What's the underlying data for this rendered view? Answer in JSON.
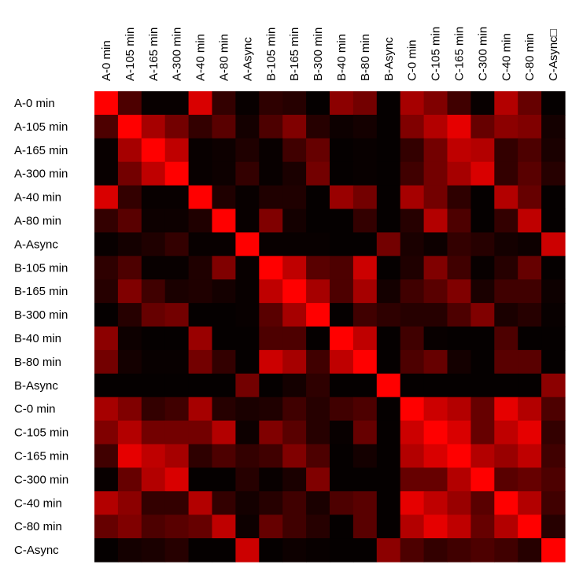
{
  "chart_data": {
    "type": "heatmap",
    "title": "",
    "xlabel": "",
    "ylabel": "",
    "legend": "none",
    "grid": false,
    "color_low": "#000000",
    "color_high": "#ff0000",
    "value_range": [
      0,
      1
    ],
    "row_labels": [
      "A-0 min",
      "A-105 min",
      "A-165 min",
      "A-300 min",
      "A-40 min",
      "A-80 min",
      "A-Async",
      "B-105 min",
      "B-165 min",
      "B-300 min",
      "B-40 min",
      "B-80 min",
      "B-Async",
      "C-0 min",
      "C-105 min",
      "C-165 min",
      "C-300 min",
      "C-40 min",
      "C-80 min",
      "C-Async"
    ],
    "col_labels": [
      "A-0 min",
      "A-105 min",
      "A-165 min",
      "A-300 min",
      "A-40 min",
      "A-80 min",
      "A-Async",
      "B-105 min",
      "B-165 min",
      "B-300 min",
      "B-40 min",
      "B-80 min",
      "B-Async",
      "C-0 min",
      "C-105 min",
      "C-165 min",
      "C-300 min",
      "C-40 min",
      "C-80 min",
      "C-Async□"
    ],
    "values": [
      [
        1.0,
        0.3,
        0.03,
        0.03,
        0.85,
        0.2,
        0.03,
        0.18,
        0.15,
        0.02,
        0.55,
        0.45,
        0.02,
        0.65,
        0.5,
        0.25,
        0.03,
        0.7,
        0.4,
        0.02
      ],
      [
        0.3,
        1.0,
        0.65,
        0.45,
        0.2,
        0.35,
        0.08,
        0.3,
        0.5,
        0.15,
        0.05,
        0.08,
        0.02,
        0.5,
        0.7,
        0.9,
        0.4,
        0.55,
        0.5,
        0.08
      ],
      [
        0.03,
        0.65,
        1.0,
        0.75,
        0.03,
        0.05,
        0.12,
        0.03,
        0.25,
        0.4,
        0.02,
        0.03,
        0.02,
        0.2,
        0.45,
        0.75,
        0.7,
        0.2,
        0.3,
        0.1
      ],
      [
        0.03,
        0.45,
        0.75,
        1.0,
        0.03,
        0.05,
        0.2,
        0.03,
        0.1,
        0.45,
        0.02,
        0.03,
        0.02,
        0.25,
        0.45,
        0.65,
        0.85,
        0.2,
        0.35,
        0.15
      ],
      [
        0.85,
        0.2,
        0.03,
        0.03,
        1.0,
        0.12,
        0.03,
        0.12,
        0.12,
        0.02,
        0.6,
        0.45,
        0.02,
        0.65,
        0.45,
        0.18,
        0.02,
        0.7,
        0.4,
        0.02
      ],
      [
        0.2,
        0.35,
        0.05,
        0.05,
        0.12,
        1.0,
        0.03,
        0.5,
        0.08,
        0.02,
        0.02,
        0.2,
        0.02,
        0.15,
        0.7,
        0.3,
        0.02,
        0.2,
        0.75,
        0.02
      ],
      [
        0.03,
        0.08,
        0.12,
        0.2,
        0.03,
        0.03,
        1.0,
        0.03,
        0.03,
        0.03,
        0.02,
        0.02,
        0.45,
        0.1,
        0.05,
        0.2,
        0.15,
        0.08,
        0.05,
        0.8
      ],
      [
        0.18,
        0.3,
        0.03,
        0.03,
        0.12,
        0.5,
        0.03,
        1.0,
        0.75,
        0.35,
        0.3,
        0.8,
        0.02,
        0.12,
        0.5,
        0.25,
        0.03,
        0.15,
        0.4,
        0.02
      ],
      [
        0.15,
        0.5,
        0.25,
        0.1,
        0.12,
        0.08,
        0.03,
        0.75,
        1.0,
        0.65,
        0.3,
        0.65,
        0.08,
        0.25,
        0.35,
        0.5,
        0.1,
        0.25,
        0.25,
        0.05
      ],
      [
        0.02,
        0.15,
        0.4,
        0.45,
        0.02,
        0.02,
        0.03,
        0.35,
        0.65,
        1.0,
        0.02,
        0.25,
        0.18,
        0.15,
        0.15,
        0.3,
        0.5,
        0.1,
        0.15,
        0.03
      ],
      [
        0.55,
        0.05,
        0.02,
        0.02,
        0.6,
        0.02,
        0.02,
        0.3,
        0.3,
        0.02,
        1.0,
        0.75,
        0.02,
        0.25,
        0.03,
        0.02,
        0.02,
        0.3,
        0.02,
        0.02
      ],
      [
        0.45,
        0.08,
        0.03,
        0.03,
        0.45,
        0.2,
        0.02,
        0.8,
        0.65,
        0.25,
        0.75,
        1.0,
        0.02,
        0.3,
        0.4,
        0.08,
        0.02,
        0.35,
        0.35,
        0.02
      ],
      [
        0.02,
        0.02,
        0.02,
        0.02,
        0.02,
        0.02,
        0.45,
        0.02,
        0.08,
        0.18,
        0.02,
        0.02,
        1.0,
        0.02,
        0.02,
        0.02,
        0.02,
        0.02,
        0.02,
        0.55
      ],
      [
        0.65,
        0.5,
        0.2,
        0.25,
        0.65,
        0.15,
        0.1,
        0.12,
        0.25,
        0.15,
        0.25,
        0.3,
        0.02,
        1.0,
        0.8,
        0.7,
        0.4,
        0.9,
        0.7,
        0.3
      ],
      [
        0.5,
        0.7,
        0.45,
        0.45,
        0.45,
        0.7,
        0.05,
        0.5,
        0.35,
        0.15,
        0.03,
        0.4,
        0.02,
        0.8,
        1.0,
        0.85,
        0.4,
        0.75,
        0.9,
        0.2
      ],
      [
        0.25,
        0.9,
        0.75,
        0.65,
        0.18,
        0.3,
        0.2,
        0.25,
        0.5,
        0.3,
        0.02,
        0.08,
        0.02,
        0.7,
        0.85,
        1.0,
        0.7,
        0.6,
        0.75,
        0.25
      ],
      [
        0.03,
        0.4,
        0.7,
        0.85,
        0.02,
        0.02,
        0.15,
        0.03,
        0.1,
        0.5,
        0.02,
        0.02,
        0.02,
        0.4,
        0.4,
        0.7,
        1.0,
        0.35,
        0.4,
        0.3
      ],
      [
        0.7,
        0.55,
        0.2,
        0.2,
        0.7,
        0.2,
        0.08,
        0.15,
        0.25,
        0.1,
        0.3,
        0.35,
        0.02,
        0.9,
        0.75,
        0.6,
        0.35,
        1.0,
        0.7,
        0.25
      ],
      [
        0.4,
        0.5,
        0.3,
        0.35,
        0.4,
        0.75,
        0.05,
        0.4,
        0.25,
        0.15,
        0.02,
        0.35,
        0.02,
        0.7,
        0.9,
        0.75,
        0.4,
        0.7,
        1.0,
        0.15
      ],
      [
        0.02,
        0.08,
        0.1,
        0.15,
        0.02,
        0.02,
        0.8,
        0.02,
        0.05,
        0.03,
        0.02,
        0.02,
        0.55,
        0.3,
        0.2,
        0.25,
        0.3,
        0.25,
        0.15,
        1.0
      ]
    ]
  }
}
